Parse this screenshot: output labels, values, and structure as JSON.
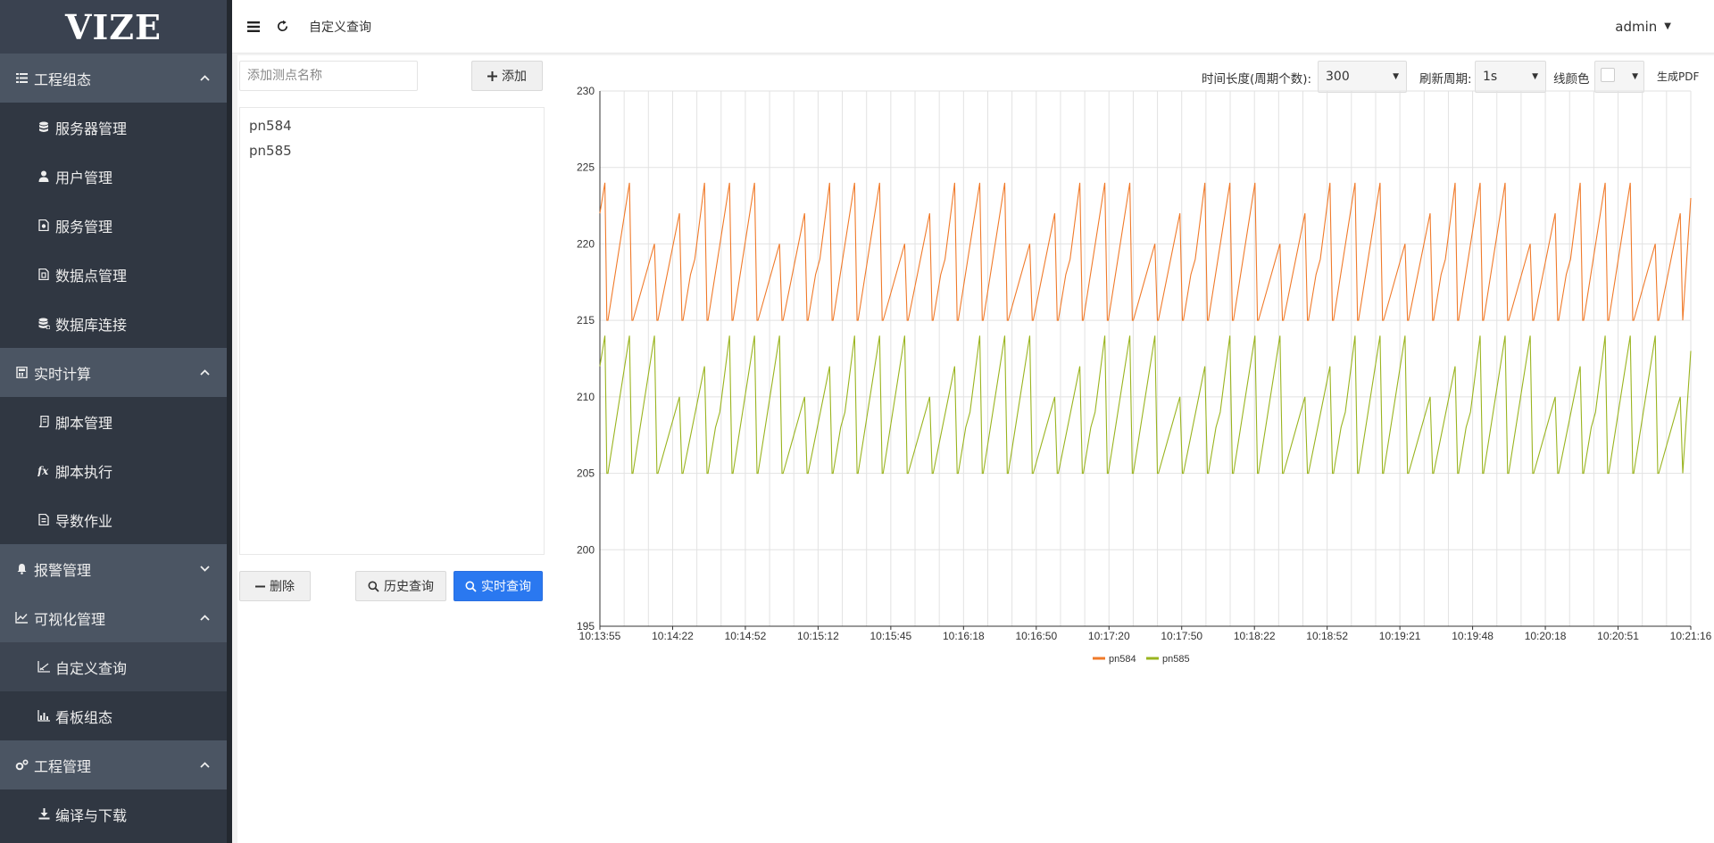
{
  "sidebar": {
    "logo": "VIZE",
    "groups": [
      {
        "label": "工程组态",
        "icon": "list-icon",
        "expanded": true,
        "items": [
          {
            "label": "服务器管理",
            "icon": "database-icon"
          },
          {
            "label": "用户管理",
            "icon": "user-icon"
          },
          {
            "label": "服务管理",
            "icon": "service-file-icon"
          },
          {
            "label": "数据点管理",
            "icon": "datapoint-file-icon"
          },
          {
            "label": "数据库连接",
            "icon": "database-link-icon"
          }
        ]
      },
      {
        "label": "实时计算",
        "icon": "calculator-icon",
        "expanded": true,
        "items": [
          {
            "label": "脚本管理",
            "icon": "script-icon"
          },
          {
            "label": "脚本执行",
            "icon": "function-icon"
          },
          {
            "label": "导数作业",
            "icon": "job-file-icon"
          }
        ]
      },
      {
        "label": "报警管理",
        "icon": "bell-icon",
        "expanded": false,
        "items": []
      },
      {
        "label": "可视化管理",
        "icon": "line-chart-icon",
        "expanded": true,
        "items": [
          {
            "label": "自定义查询",
            "icon": "custom-chart-icon",
            "active": true
          },
          {
            "label": "看板组态",
            "icon": "dashboard-icon"
          }
        ]
      },
      {
        "label": "工程管理",
        "icon": "gears-icon",
        "expanded": true,
        "items": [
          {
            "label": "编译与下载",
            "icon": "download-icon"
          }
        ]
      }
    ]
  },
  "topbar": {
    "breadcrumb": "自定义查询",
    "user": "admin"
  },
  "left_panel": {
    "input_placeholder": "添加测点名称",
    "add_label": "添加",
    "points": [
      "pn584",
      "pn585"
    ],
    "delete_label": "删除",
    "history_label": "历史查询",
    "realtime_label": "实时查询"
  },
  "toolbar": {
    "duration_label": "时间长度(周期个数):",
    "duration_value": "300",
    "refresh_label": "刷新周期:",
    "refresh_value": "1s",
    "color_label": "线颜色",
    "pdf_label": "生成PDF"
  },
  "chart_data": {
    "type": "line",
    "ylim": [
      195,
      230
    ],
    "yticks": [
      195,
      200,
      205,
      210,
      215,
      220,
      225,
      230
    ],
    "xtick_labels": [
      "10:13:55",
      "10:14:22",
      "10:14:52",
      "10:15:12",
      "10:15:45",
      "10:16:18",
      "10:16:50",
      "10:17:20",
      "10:17:50",
      "10:18:22",
      "10:18:52",
      "10:19:21",
      "10:19:48",
      "10:20:18",
      "10:20:51",
      "10:21:16"
    ],
    "grid": true,
    "legend_position": "bottom-center",
    "series": [
      {
        "name": "pn584",
        "color": "#f07a2a",
        "min": 215,
        "max": 224,
        "start": 222,
        "end": 223,
        "cycles": 43
      },
      {
        "name": "pn585",
        "color": "#9ab41f",
        "min": 205,
        "max": 214,
        "start": 212,
        "end": 213,
        "cycles": 43
      }
    ]
  }
}
